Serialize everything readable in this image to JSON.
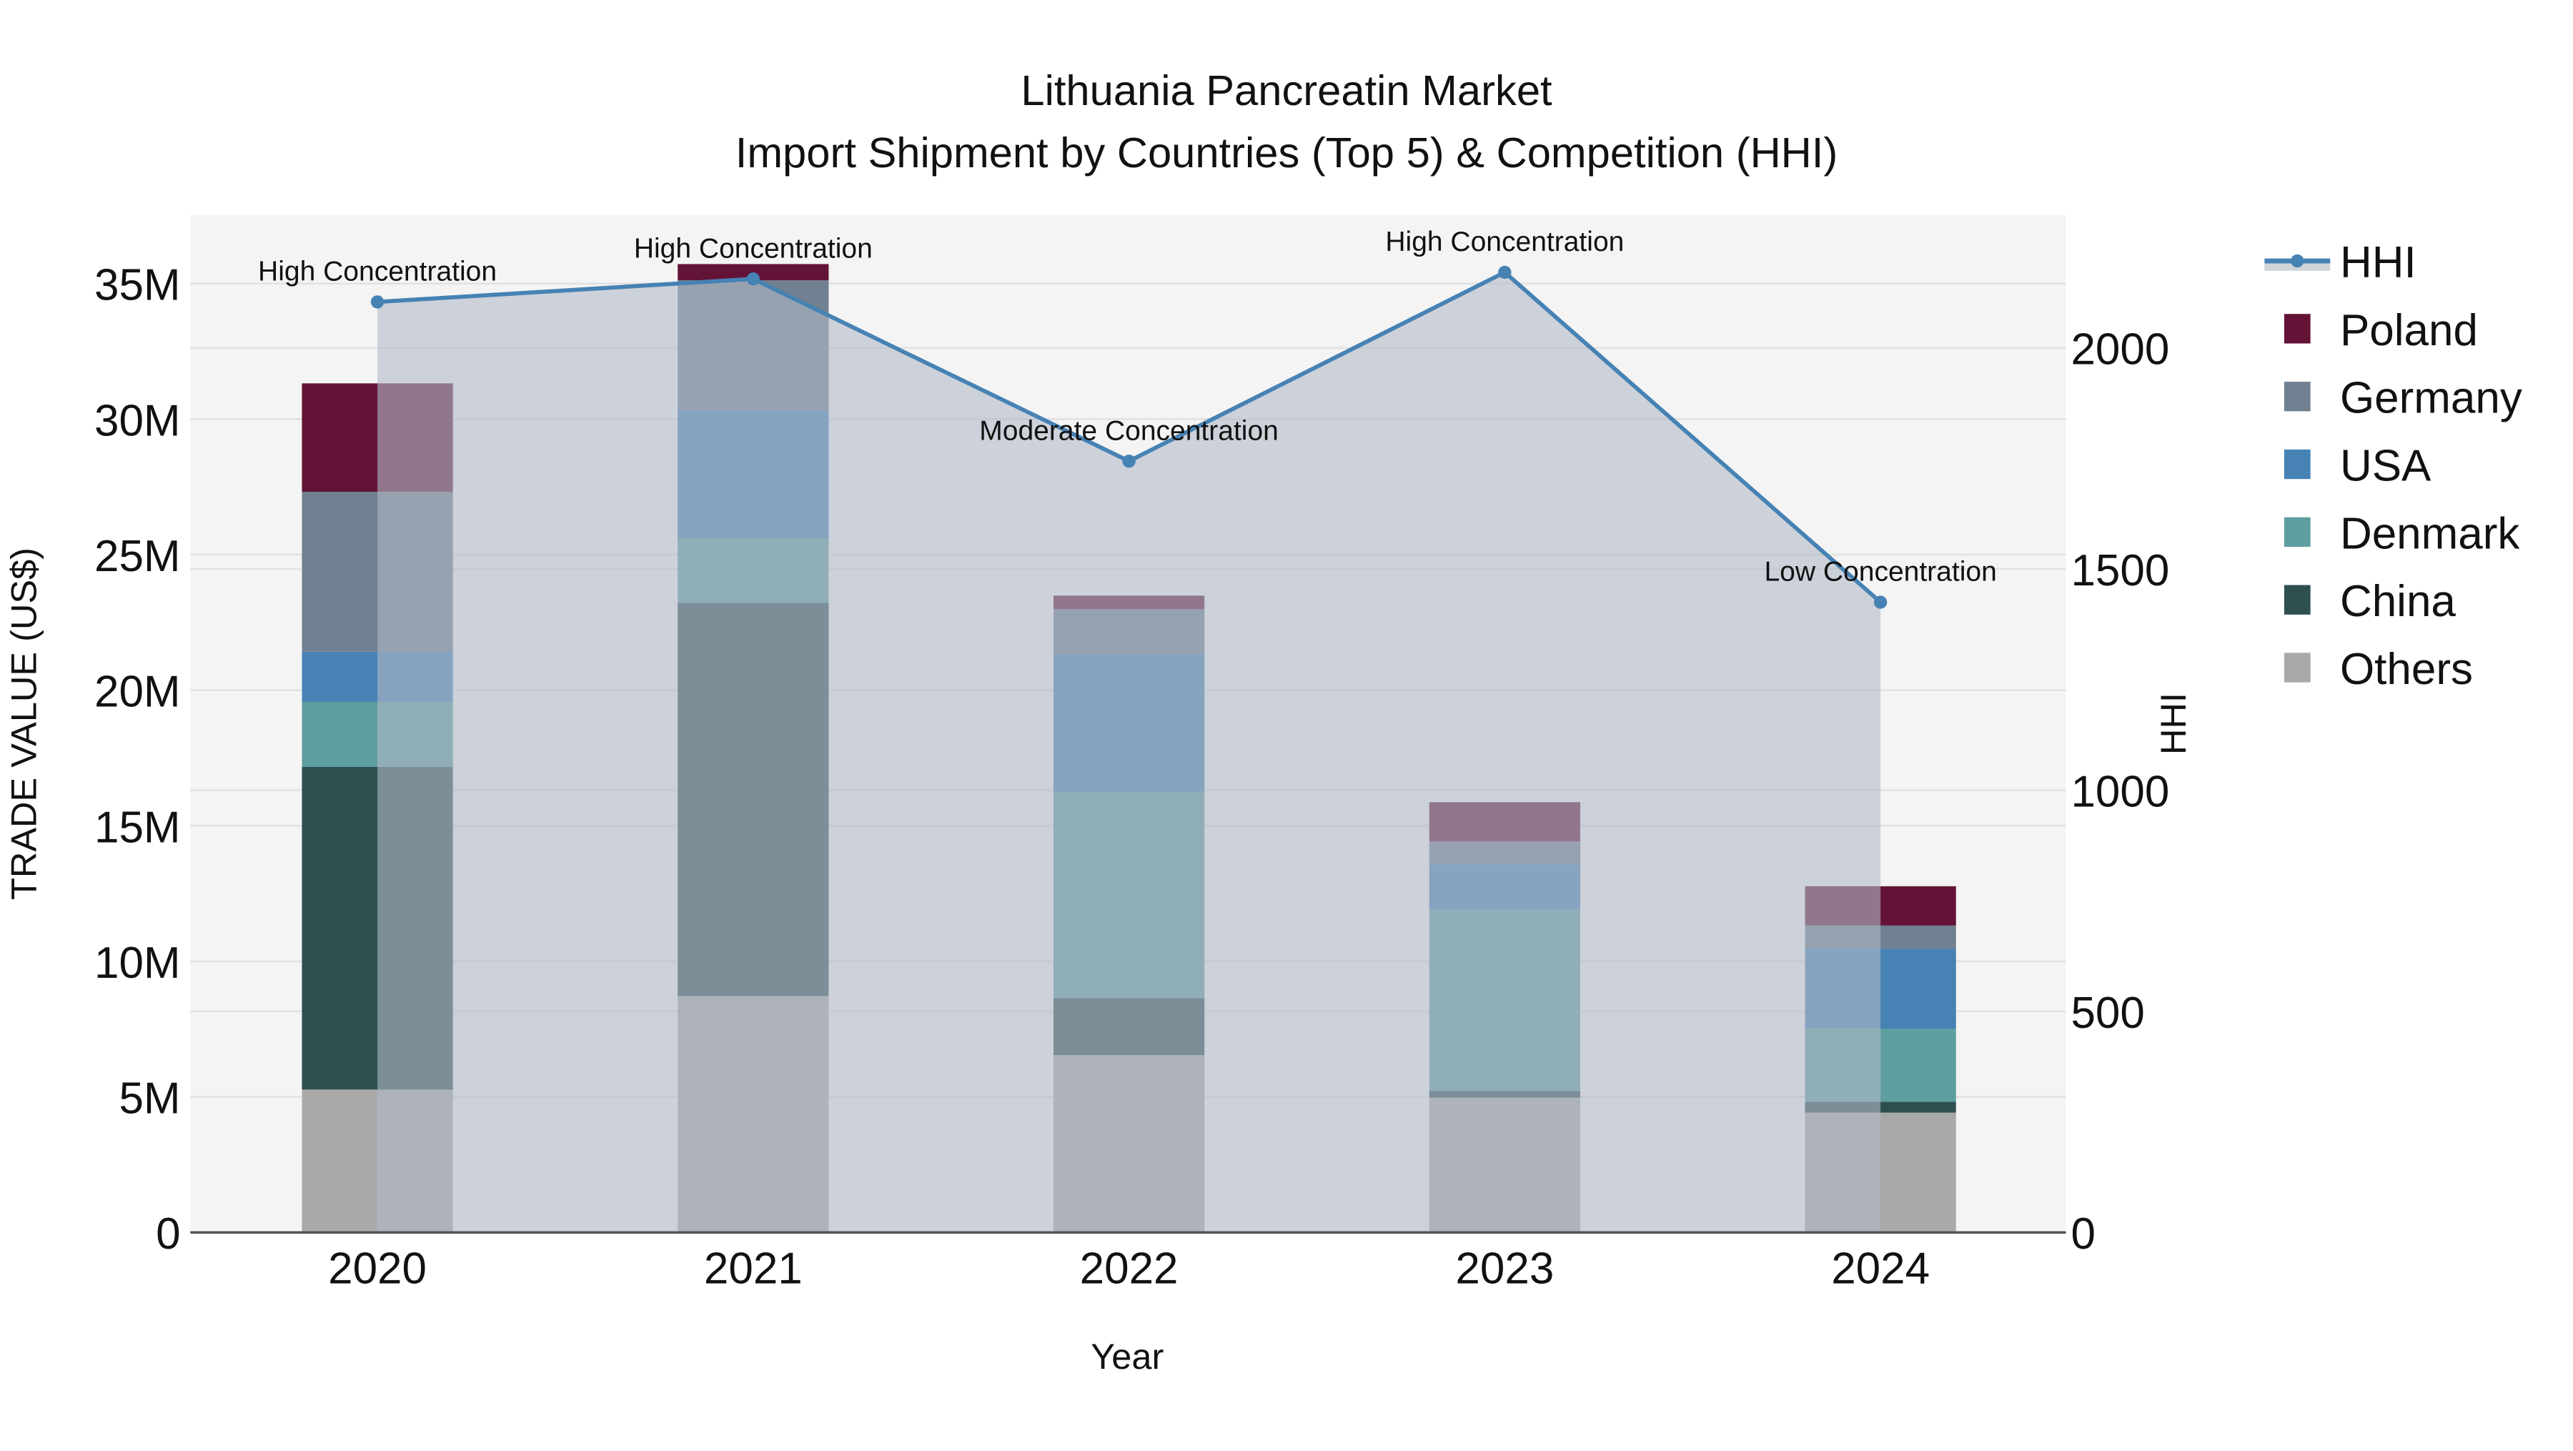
{
  "title": {
    "line1": "Lithuania Pancreatin Market",
    "line2": "Import Shipment by Countries (Top 5) & Competition (HHI)"
  },
  "axes": {
    "x_label": "Year",
    "y_left_label": "TRADE VALUE (US$)",
    "y_right_label": "HHI",
    "y_left_ticks": [
      "0",
      "5M",
      "10M",
      "15M",
      "20M",
      "25M",
      "30M",
      "35M"
    ],
    "y_right_ticks": [
      "0",
      "500",
      "1000",
      "1500",
      "2000"
    ]
  },
  "legend": [
    {
      "name": "HHI",
      "color": "#4682B4",
      "type": "line"
    },
    {
      "name": "Poland",
      "color": "#631436",
      "type": "bar"
    },
    {
      "name": "Germany",
      "color": "#708090",
      "type": "bar"
    },
    {
      "name": "USA",
      "color": "#4682B4",
      "type": "bar"
    },
    {
      "name": "Denmark",
      "color": "#5F9EA0",
      "type": "bar"
    },
    {
      "name": "China",
      "color": "#2F4F4F",
      "type": "bar"
    },
    {
      "name": "Others",
      "color": "#A9A9A9",
      "type": "bar"
    }
  ],
  "annotations": [
    {
      "year": "2020",
      "text": "High Concentration"
    },
    {
      "year": "2021",
      "text": "High Concentration"
    },
    {
      "year": "2022",
      "text": "Moderate Concentration"
    },
    {
      "year": "2023",
      "text": "High Concentration"
    },
    {
      "year": "2024",
      "text": "Low Concentration"
    }
  ],
  "chart_data": {
    "type": "bar",
    "stacked": true,
    "title": "Lithuania Pancreatin Market — Import Shipment by Countries (Top 5) & Competition (HHI)",
    "xlabel": "Year",
    "ylabel": "TRADE VALUE (US$)",
    "y2label": "HHI",
    "categories": [
      "2020",
      "2021",
      "2022",
      "2023",
      "2024"
    ],
    "ylim": [
      0,
      37500000
    ],
    "y2lim": [
      0,
      2300
    ],
    "series": [
      {
        "name": "Others",
        "color": "#A9A9A9",
        "values": [
          5270000,
          8720000,
          6540000,
          4970000,
          4420000
        ]
      },
      {
        "name": "China",
        "color": "#2F4F4F",
        "values": [
          11900000,
          14500000,
          2100000,
          250000,
          400000
        ]
      },
      {
        "name": "Denmark",
        "color": "#5F9EA0",
        "values": [
          2400000,
          2400000,
          7600000,
          6700000,
          2700000
        ]
      },
      {
        "name": "USA",
        "color": "#4682B4",
        "values": [
          1850000,
          4700000,
          5100000,
          1650000,
          2950000
        ]
      },
      {
        "name": "Germany",
        "color": "#708090",
        "values": [
          5900000,
          4800000,
          1650000,
          850000,
          850000
        ]
      },
      {
        "name": "Poland",
        "color": "#631436",
        "values": [
          4000000,
          600000,
          500000,
          1450000,
          1450000
        ]
      }
    ],
    "line_series": {
      "name": "HHI",
      "axis": "right",
      "color": "#4682B4",
      "values": [
        2104,
        2156,
        1744,
        2171,
        1425
      ]
    },
    "grid": true,
    "legend_position": "right"
  }
}
